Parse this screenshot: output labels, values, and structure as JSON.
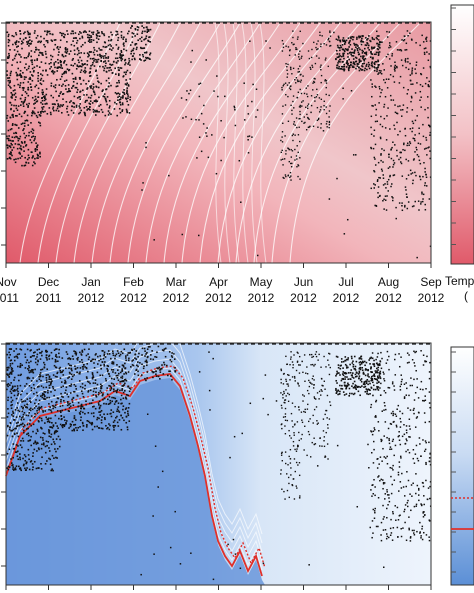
{
  "chart_data": [
    {
      "type": "heatmap",
      "panel": "top",
      "x_tick_labels": [
        {
          "month": "Nov",
          "year": "2011"
        },
        {
          "month": "Dec",
          "year": "2011"
        },
        {
          "month": "Jan",
          "year": "2012"
        },
        {
          "month": "Feb",
          "year": "2012"
        },
        {
          "month": "Mar",
          "year": "2012"
        },
        {
          "month": "Apr",
          "year": "2012"
        },
        {
          "month": "May",
          "year": "2012"
        },
        {
          "month": "Jun",
          "year": "2012"
        },
        {
          "month": "Jul",
          "year": "2012"
        },
        {
          "month": "Aug",
          "year": "2012"
        },
        {
          "month": "Sep",
          "year": "2012"
        }
      ],
      "colorbar_label": "Temp",
      "colormap": [
        "#ffffff",
        "#e06070"
      ],
      "overlays": [
        "white contour lines",
        "black scatter points",
        "dashed top line"
      ]
    },
    {
      "type": "heatmap",
      "panel": "bottom",
      "colormap": [
        "#ffffff",
        "#5b8fd6"
      ],
      "overlays": [
        "white contour lines",
        "red solid line",
        "red dotted line",
        "black scatter points",
        "dashed top line"
      ],
      "colors": {
        "line": "#e0302a"
      }
    }
  ]
}
